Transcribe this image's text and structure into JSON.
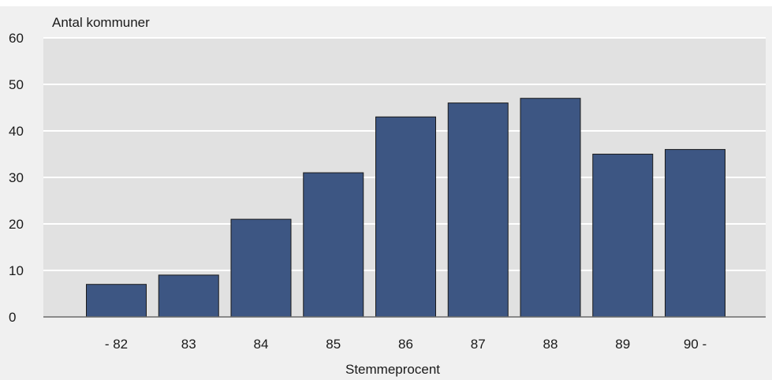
{
  "chart_data": {
    "type": "bar",
    "title": "",
    "ylabel": "Antal kommuner",
    "xlabel": "Stemmeprocent",
    "categories": [
      "- 82",
      "83",
      "84",
      "85",
      "86",
      "87",
      "88",
      "89",
      "90 -"
    ],
    "values": [
      7,
      9,
      21,
      31,
      43,
      46,
      47,
      35,
      36
    ],
    "ylim": [
      0,
      60
    ],
    "yticks": [
      "0",
      "10",
      "20",
      "30",
      "40",
      "50",
      "60"
    ],
    "grid": true,
    "legend": "none",
    "colors": {
      "bar_fill": "#3d5683",
      "bar_stroke": "#1a1a1a",
      "plot_background": "#e1e1e1",
      "outer_background": "#f0f0f0",
      "gridline": "#ffffff",
      "axis_line": "#6b6b6b"
    }
  }
}
